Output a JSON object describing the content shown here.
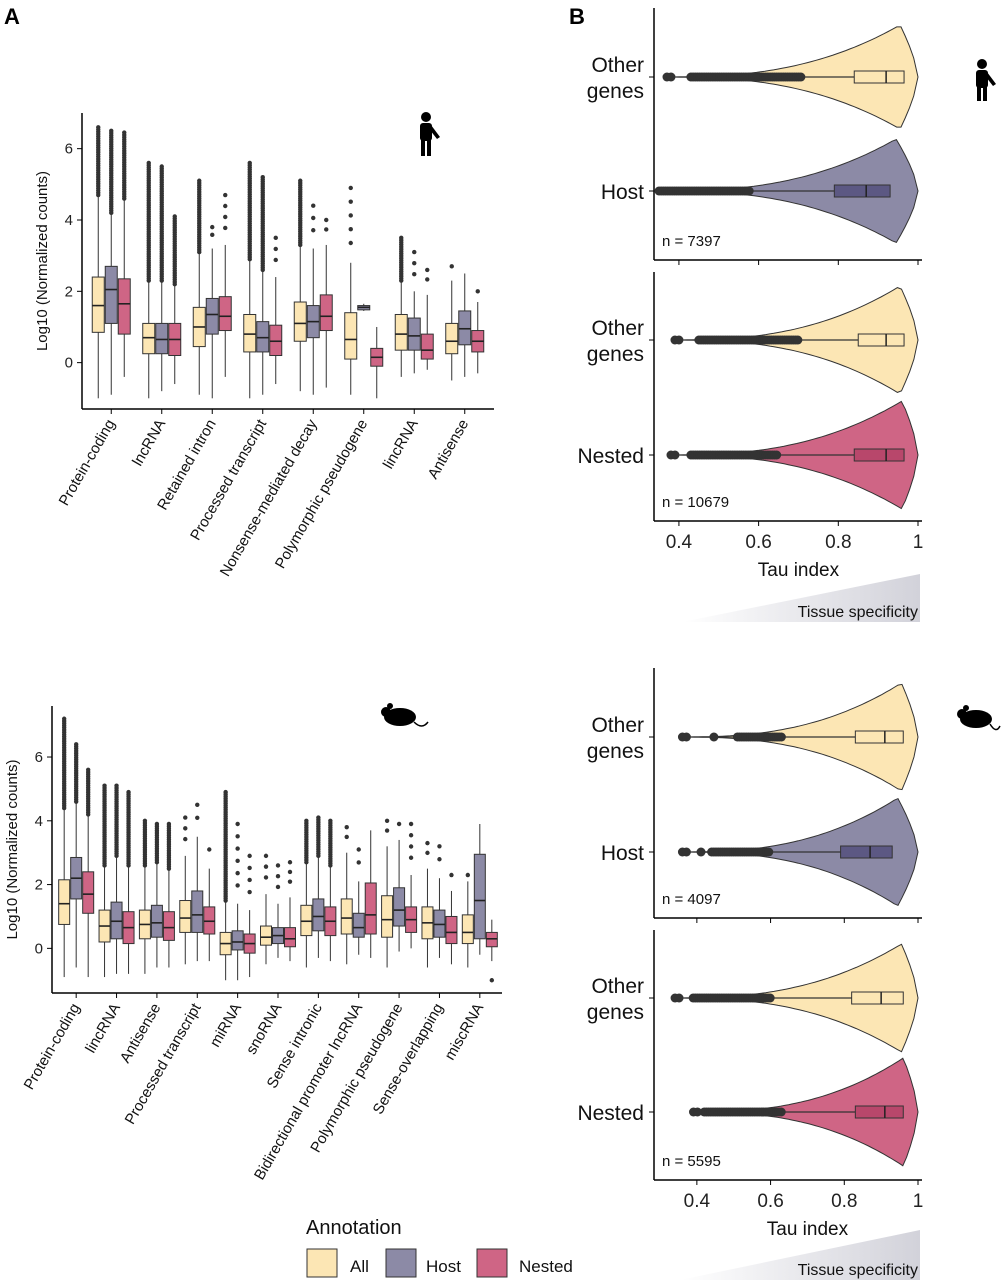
{
  "panel_labels": {
    "a": "A",
    "b": "B"
  },
  "legend": {
    "title": "Annotation",
    "items": [
      {
        "label": "All",
        "color": "#FCE6B4"
      },
      {
        "label": "Host",
        "color": "#8C8AA6"
      },
      {
        "label": "Nested",
        "color": "#CF6585"
      }
    ]
  },
  "colors": {
    "all": "#FCE6B4",
    "host": "#8C8AA6",
    "nested": "#CF6585",
    "host_dark": "#5C5883",
    "nested_dark": "#B8476B",
    "outlier": "#333333"
  },
  "icons": {
    "human": "human-figure-icon",
    "mouse": "mouse-icon"
  },
  "chart_data": [
    {
      "id": "human-biotype",
      "type": "boxplot",
      "ylabel": "Log10 (Normalized counts)",
      "ylim": [
        -1.3,
        7
      ],
      "yticks": [
        0,
        2,
        4,
        6
      ],
      "categories": [
        "Protein-coding",
        "lncRNA",
        "Retained intron",
        "Processed transcript",
        "Nonsense-mediated decay",
        "Polymorphic pseudogene",
        "lincRNA",
        "Antisense"
      ],
      "series_keys": [
        "all",
        "host",
        "nested"
      ],
      "boxes": [
        [
          {
            "q1": 0.85,
            "med": 1.6,
            "q3": 2.4,
            "wlo": -1.0,
            "whi": 4.7,
            "out_top": 6.6,
            "out_dense": true
          },
          {
            "q1": 1.1,
            "med": 2.05,
            "q3": 2.7,
            "wlo": -0.9,
            "whi": 4.2,
            "out_top": 6.5,
            "out_dense": true
          },
          {
            "q1": 0.8,
            "med": 1.65,
            "q3": 2.35,
            "wlo": -0.4,
            "whi": 4.6,
            "out_top": 6.45,
            "out_dense": true
          }
        ],
        [
          {
            "q1": 0.25,
            "med": 0.7,
            "q3": 1.1,
            "wlo": -1.0,
            "whi": 2.3,
            "out_top": 5.6,
            "out_dense": true
          },
          {
            "q1": 0.25,
            "med": 0.65,
            "q3": 1.1,
            "wlo": -0.8,
            "whi": 2.3,
            "out_top": 5.5,
            "out_dense": true
          },
          {
            "q1": 0.2,
            "med": 0.65,
            "q3": 1.1,
            "wlo": -0.6,
            "whi": 2.2,
            "out_top": 4.1,
            "out_dense": true
          }
        ],
        [
          {
            "q1": 0.45,
            "med": 1.0,
            "q3": 1.55,
            "wlo": -0.9,
            "whi": 3.1,
            "out_top": 5.1,
            "out_dense": true
          },
          {
            "q1": 0.8,
            "med": 1.35,
            "q3": 1.8,
            "wlo": -1.0,
            "whi": 3.2,
            "out_top": 3.8,
            "out_dense": false
          },
          {
            "q1": 0.9,
            "med": 1.3,
            "q3": 1.85,
            "wlo": -0.4,
            "whi": 3.3,
            "out_top": 4.7,
            "out_dense": false
          }
        ],
        [
          {
            "q1": 0.3,
            "med": 0.8,
            "q3": 1.35,
            "wlo": -1.0,
            "whi": 2.9,
            "out_top": 5.6,
            "out_dense": true
          },
          {
            "q1": 0.3,
            "med": 0.7,
            "q3": 1.15,
            "wlo": -0.9,
            "whi": 2.6,
            "out_top": 5.2,
            "out_dense": true
          },
          {
            "q1": 0.2,
            "med": 0.6,
            "q3": 1.05,
            "wlo": -0.6,
            "whi": 2.4,
            "out_top": 3.5,
            "out_dense": false
          }
        ],
        [
          {
            "q1": 0.6,
            "med": 1.1,
            "q3": 1.7,
            "wlo": -0.8,
            "whi": 3.3,
            "out_top": 5.1,
            "out_dense": true
          },
          {
            "q1": 0.7,
            "med": 1.15,
            "q3": 1.6,
            "wlo": -0.9,
            "whi": 3.2,
            "out_top": 4.4,
            "out_dense": false
          },
          {
            "q1": 0.9,
            "med": 1.3,
            "q3": 1.9,
            "wlo": -0.7,
            "whi": 3.3,
            "out_top": 4.0,
            "out_dense": false
          }
        ],
        [
          {
            "q1": 0.1,
            "med": 0.65,
            "q3": 1.4,
            "wlo": -0.9,
            "whi": 2.8,
            "out_top": 4.9,
            "out_dense": false
          },
          {
            "q1": 1.48,
            "med": 1.55,
            "q3": 1.6,
            "wlo": 1.45,
            "whi": 1.65,
            "out_top": null,
            "out_dense": false
          },
          {
            "q1": -0.1,
            "med": 0.15,
            "q3": 0.4,
            "wlo": -1.0,
            "whi": 1.0,
            "out_top": null,
            "out_dense": false
          }
        ],
        [
          {
            "q1": 0.35,
            "med": 0.8,
            "q3": 1.35,
            "wlo": -0.4,
            "whi": 2.3,
            "out_top": 3.5,
            "out_dense": true
          },
          {
            "q1": 0.35,
            "med": 0.75,
            "q3": 1.25,
            "wlo": -0.3,
            "whi": 2.0,
            "out_top": 3.1,
            "out_dense": false
          },
          {
            "q1": 0.1,
            "med": 0.35,
            "q3": 0.8,
            "wlo": -0.2,
            "whi": 1.9,
            "out_top": 2.6,
            "out_dense": false
          }
        ],
        [
          {
            "q1": 0.25,
            "med": 0.6,
            "q3": 1.1,
            "wlo": -0.5,
            "whi": 2.3,
            "out_top": 2.7,
            "out_dense": false
          },
          {
            "q1": 0.5,
            "med": 0.95,
            "q3": 1.45,
            "wlo": -0.4,
            "whi": 2.5,
            "out_top": null,
            "out_dense": false
          },
          {
            "q1": 0.3,
            "med": 0.6,
            "q3": 0.9,
            "wlo": -0.3,
            "whi": 1.7,
            "out_top": 2.0,
            "out_dense": false
          }
        ]
      ]
    },
    {
      "id": "mouse-biotype",
      "type": "boxplot",
      "ylabel": "Log10 (Normalized counts)",
      "ylim": [
        -1.4,
        7.6
      ],
      "yticks": [
        0,
        2,
        4,
        6
      ],
      "categories": [
        "Protein-coding",
        "lincRNA",
        "Antisense",
        "Processed transcript",
        "miRNA",
        "snoRNA",
        "Sense intronic",
        "Bidirectional promoter lncRNA",
        "Polymorphic pseudogene",
        "Sense-overlapping",
        "miscRNA"
      ],
      "series_keys": [
        "all",
        "host",
        "nested"
      ],
      "boxes": [
        [
          {
            "q1": 0.75,
            "med": 1.4,
            "q3": 2.15,
            "wlo": -0.9,
            "whi": 4.4,
            "out_top": 7.2,
            "out_dense": true
          },
          {
            "q1": 1.55,
            "med": 2.2,
            "q3": 2.85,
            "wlo": -0.6,
            "whi": 4.6,
            "out_top": 6.4,
            "out_dense": true
          },
          {
            "q1": 1.1,
            "med": 1.7,
            "q3": 2.4,
            "wlo": -0.9,
            "whi": 4.2,
            "out_top": 5.6,
            "out_dense": true
          }
        ],
        [
          {
            "q1": 0.2,
            "med": 0.7,
            "q3": 1.2,
            "wlo": -0.9,
            "whi": 2.6,
            "out_top": 5.1,
            "out_dense": true
          },
          {
            "q1": 0.3,
            "med": 0.85,
            "q3": 1.45,
            "wlo": -0.8,
            "whi": 2.9,
            "out_top": 5.1,
            "out_dense": true
          },
          {
            "q1": 0.15,
            "med": 0.65,
            "q3": 1.15,
            "wlo": -0.8,
            "whi": 2.6,
            "out_top": 4.9,
            "out_dense": true
          }
        ],
        [
          {
            "q1": 0.3,
            "med": 0.75,
            "q3": 1.2,
            "wlo": -0.8,
            "whi": 2.6,
            "out_top": 4.0,
            "out_dense": true
          },
          {
            "q1": 0.35,
            "med": 0.8,
            "q3": 1.35,
            "wlo": -0.6,
            "whi": 2.7,
            "out_top": 3.9,
            "out_dense": true
          },
          {
            "q1": 0.25,
            "med": 0.65,
            "q3": 1.15,
            "wlo": -0.6,
            "whi": 2.5,
            "out_top": 3.9,
            "out_dense": true
          }
        ],
        [
          {
            "q1": 0.5,
            "med": 0.95,
            "q3": 1.5,
            "wlo": -0.5,
            "whi": 2.9,
            "out_top": 4.1,
            "out_dense": false
          },
          {
            "q1": 0.5,
            "med": 1.05,
            "q3": 1.8,
            "wlo": -0.4,
            "whi": 3.5,
            "out_top": 4.5,
            "out_dense": false
          },
          {
            "q1": 0.45,
            "med": 0.85,
            "q3": 1.3,
            "wlo": -0.4,
            "whi": 2.5,
            "out_top": 3.1,
            "out_dense": false
          }
        ],
        [
          {
            "q1": -0.2,
            "med": 0.15,
            "q3": 0.5,
            "wlo": -1.0,
            "whi": 1.5,
            "out_top": 4.9,
            "out_dense": true
          },
          {
            "q1": -0.05,
            "med": 0.2,
            "q3": 0.55,
            "wlo": -1.0,
            "whi": 1.4,
            "out_top": 3.9,
            "out_dense": false
          },
          {
            "q1": -0.15,
            "med": 0.15,
            "q3": 0.45,
            "wlo": -0.9,
            "whi": 1.2,
            "out_top": 2.9,
            "out_dense": false
          }
        ],
        [
          {
            "q1": 0.1,
            "med": 0.35,
            "q3": 0.7,
            "wlo": -0.5,
            "whi": 1.7,
            "out_top": 2.9,
            "out_dense": false
          },
          {
            "q1": 0.15,
            "med": 0.4,
            "q3": 0.65,
            "wlo": -0.3,
            "whi": 1.4,
            "out_top": 2.6,
            "out_dense": false
          },
          {
            "q1": 0.05,
            "med": 0.3,
            "q3": 0.65,
            "wlo": -0.4,
            "whi": 1.6,
            "out_top": 2.7,
            "out_dense": false
          }
        ],
        [
          {
            "q1": 0.4,
            "med": 0.85,
            "q3": 1.35,
            "wlo": -0.6,
            "whi": 2.7,
            "out_top": 4.0,
            "out_dense": true
          },
          {
            "q1": 0.55,
            "med": 1.0,
            "q3": 1.55,
            "wlo": -0.3,
            "whi": 2.9,
            "out_top": 4.1,
            "out_dense": true
          },
          {
            "q1": 0.4,
            "med": 0.85,
            "q3": 1.3,
            "wlo": -0.4,
            "whi": 2.6,
            "out_top": 4.0,
            "out_dense": true
          }
        ],
        [
          {
            "q1": 0.45,
            "med": 0.95,
            "q3": 1.55,
            "wlo": -0.5,
            "whi": 3.0,
            "out_top": 3.8,
            "out_dense": false
          },
          {
            "q1": 0.35,
            "med": 0.65,
            "q3": 1.1,
            "wlo": -0.2,
            "whi": 2.1,
            "out_top": 3.1,
            "out_dense": false
          },
          {
            "q1": 0.45,
            "med": 1.05,
            "q3": 2.05,
            "wlo": -0.3,
            "whi": 3.7,
            "out_top": null,
            "out_dense": false
          }
        ],
        [
          {
            "q1": 0.35,
            "med": 0.9,
            "q3": 1.65,
            "wlo": -0.6,
            "whi": 3.2,
            "out_top": 4.0,
            "out_dense": false
          },
          {
            "q1": 0.7,
            "med": 1.2,
            "q3": 1.9,
            "wlo": -0.1,
            "whi": 3.4,
            "out_top": 3.9,
            "out_dense": false
          },
          {
            "q1": 0.5,
            "med": 0.9,
            "q3": 1.3,
            "wlo": 0.0,
            "whi": 2.3,
            "out_top": 3.9,
            "out_dense": false
          }
        ],
        [
          {
            "q1": 0.3,
            "med": 0.8,
            "q3": 1.3,
            "wlo": -0.6,
            "whi": 2.5,
            "out_top": 3.3,
            "out_dense": false
          },
          {
            "q1": 0.35,
            "med": 0.75,
            "q3": 1.2,
            "wlo": -0.3,
            "whi": 2.2,
            "out_top": 3.2,
            "out_dense": false
          },
          {
            "q1": 0.15,
            "med": 0.5,
            "q3": 1.0,
            "wlo": -0.5,
            "whi": 1.8,
            "out_top": 2.3,
            "out_dense": false
          }
        ],
        [
          {
            "q1": 0.15,
            "med": 0.5,
            "q3": 1.05,
            "wlo": -0.6,
            "whi": 2.1,
            "out_top": 2.3,
            "out_dense": false
          },
          {
            "q1": 0.3,
            "med": 1.5,
            "q3": 2.95,
            "wlo": -0.2,
            "whi": 3.9,
            "out_top": null,
            "out_dense": false
          },
          {
            "q1": 0.05,
            "med": 0.3,
            "q3": 0.5,
            "wlo": -0.4,
            "whi": 0.9,
            "out_top": -1.0,
            "out_dense": false
          }
        ]
      ]
    },
    {
      "id": "human-tau-host",
      "type": "violin",
      "xlabel": "",
      "xlim": [
        0.35,
        1.0
      ],
      "xticks": [
        0.4,
        0.6,
        0.8,
        1
      ],
      "xtick_labels": [
        "0.4",
        "0.6",
        "0.8",
        "1"
      ],
      "n_label": "n = 7397",
      "groups": [
        {
          "label_lines": [
            "Other",
            "genes"
          ],
          "color_key": "all",
          "q1": 0.84,
          "med": 0.92,
          "q3": 0.965,
          "whisk_lo": 0.72,
          "outlier_min": 0.36,
          "dense_from": 0.43,
          "dense_to": 0.71,
          "peak": 0.955
        },
        {
          "label_lines": [
            "Host"
          ],
          "color_key": "host",
          "q1": 0.79,
          "med": 0.87,
          "q3": 0.93,
          "whisk_lo": 0.6,
          "outlier_min": 0.35,
          "dense_from": 0.35,
          "dense_to": 0.58,
          "peak": 0.945
        }
      ]
    },
    {
      "id": "human-tau-nested",
      "type": "violin",
      "xlabel": "Tau index",
      "xlim": [
        0.35,
        1.0
      ],
      "xticks": [
        0.4,
        0.6,
        0.8,
        1
      ],
      "xtick_labels": [
        "0.4",
        "0.6",
        "0.8",
        "1"
      ],
      "n_label": "n = 10679",
      "groups": [
        {
          "label_lines": [
            "Other",
            "genes"
          ],
          "color_key": "all",
          "q1": 0.85,
          "med": 0.92,
          "q3": 0.965,
          "whisk_lo": 0.72,
          "outlier_min": 0.38,
          "dense_from": 0.45,
          "dense_to": 0.7,
          "peak": 0.955
        },
        {
          "label_lines": [
            "Nested"
          ],
          "color_key": "nested",
          "q1": 0.84,
          "med": 0.92,
          "q3": 0.965,
          "whisk_lo": 0.7,
          "outlier_min": 0.37,
          "dense_from": 0.43,
          "dense_to": 0.65,
          "peak": 0.96
        }
      ]
    },
    {
      "id": "mouse-tau-host",
      "type": "violin",
      "xlabel": "",
      "xlim": [
        0.3,
        1.0
      ],
      "xticks": [
        0.4,
        0.6,
        0.8,
        1
      ],
      "xtick_labels": [
        "0.4",
        "0.6",
        "0.8",
        "1"
      ],
      "n_label": "n = 4097",
      "groups": [
        {
          "label_lines": [
            "Other",
            "genes"
          ],
          "color_key": "all",
          "q1": 0.83,
          "med": 0.91,
          "q3": 0.96,
          "whisk_lo": 0.65,
          "outlier_min": 0.35,
          "dense_from": 0.51,
          "dense_to": 0.63,
          "peak": 0.955
        },
        {
          "label_lines": [
            "Host"
          ],
          "color_key": "host",
          "q1": 0.79,
          "med": 0.87,
          "q3": 0.93,
          "whisk_lo": 0.62,
          "outlier_min": 0.35,
          "dense_from": 0.44,
          "dense_to": 0.6,
          "peak": 0.945
        }
      ]
    },
    {
      "id": "mouse-tau-nested",
      "type": "violin",
      "xlabel": "Tau index",
      "xlim": [
        0.3,
        1.0
      ],
      "xticks": [
        0.4,
        0.6,
        0.8,
        1
      ],
      "xtick_labels": [
        "0.4",
        "0.6",
        "0.8",
        "1"
      ],
      "n_label": "n = 5595",
      "groups": [
        {
          "label_lines": [
            "Other",
            "genes"
          ],
          "color_key": "all",
          "q1": 0.82,
          "med": 0.9,
          "q3": 0.96,
          "whisk_lo": 0.6,
          "outlier_min": 0.33,
          "dense_from": 0.39,
          "dense_to": 0.6,
          "peak": 0.955
        },
        {
          "label_lines": [
            "Nested"
          ],
          "color_key": "nested",
          "q1": 0.83,
          "med": 0.91,
          "q3": 0.96,
          "whisk_lo": 0.64,
          "outlier_min": 0.38,
          "dense_from": 0.42,
          "dense_to": 0.63,
          "peak": 0.96
        }
      ]
    }
  ],
  "gradient_labels": {
    "human": "Tissue specificity",
    "mouse": "Tissue specificity"
  }
}
